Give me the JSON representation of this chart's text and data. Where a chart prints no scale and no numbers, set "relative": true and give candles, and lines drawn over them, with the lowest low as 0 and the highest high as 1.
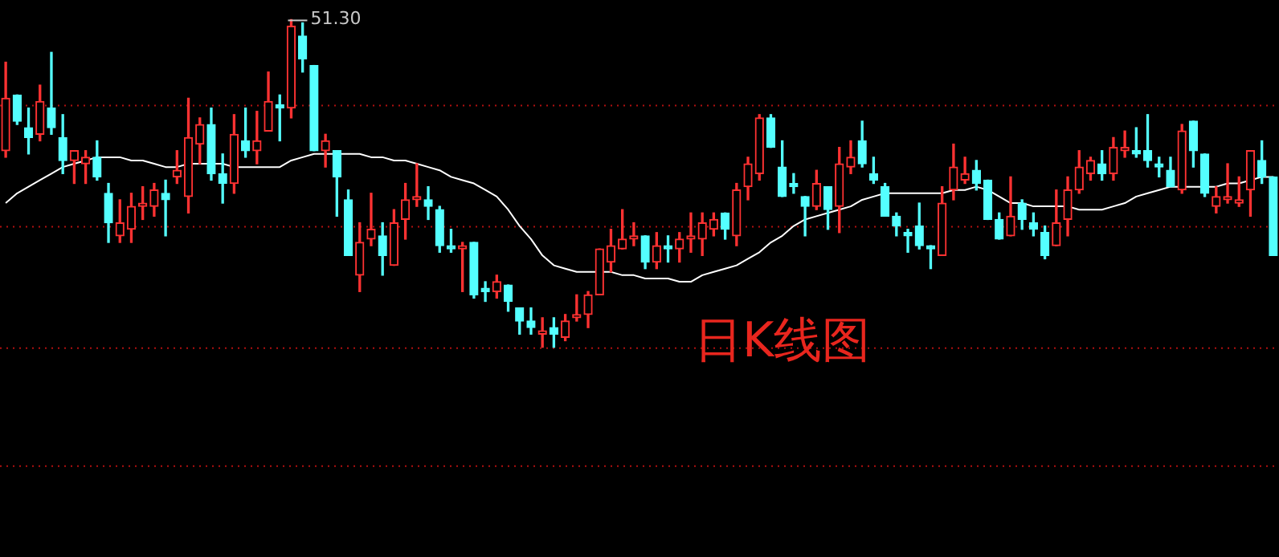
{
  "chart_data": {
    "type": "candlestick",
    "title": "日K线图",
    "relative": true,
    "categories": [
      null,
      null,
      null,
      null,
      null,
      null,
      null,
      null,
      null,
      null,
      null,
      null,
      null,
      null,
      null,
      null,
      null,
      null,
      null,
      null,
      null,
      null,
      null,
      null,
      null,
      null,
      null,
      null,
      null,
      null,
      null,
      null,
      null,
      null,
      null,
      null,
      null,
      null,
      null,
      null,
      null,
      null,
      null,
      null,
      null,
      null,
      null,
      null,
      null,
      null,
      null,
      null,
      null,
      null,
      null,
      null,
      null,
      null,
      null,
      null,
      null,
      null,
      null,
      null,
      null,
      null,
      null,
      null,
      null,
      null,
      null,
      null,
      null,
      null,
      null,
      null,
      null,
      null,
      null,
      null,
      null,
      null,
      null,
      null,
      null,
      null,
      null,
      null,
      null,
      null,
      null,
      null,
      null,
      null,
      null,
      null,
      null,
      null,
      null,
      null,
      null,
      null,
      null,
      null,
      null,
      null,
      null,
      null,
      null,
      null,
      null,
      null
    ],
    "ohlc": [
      [
        0.6,
        0.87,
        0.58,
        0.76
      ],
      [
        0.77,
        0.77,
        0.68,
        0.69
      ],
      [
        0.67,
        0.73,
        0.59,
        0.64
      ],
      [
        0.65,
        0.8,
        0.63,
        0.75
      ],
      [
        0.73,
        0.9,
        0.65,
        0.67
      ],
      [
        0.64,
        0.71,
        0.53,
        0.57
      ],
      [
        0.57,
        0.6,
        0.5,
        0.6
      ],
      [
        0.56,
        0.6,
        0.5,
        0.58
      ],
      [
        0.58,
        0.63,
        0.51,
        0.52
      ],
      [
        0.47,
        0.5,
        0.32,
        0.38
      ],
      [
        0.34,
        0.45,
        0.32,
        0.38
      ],
      [
        0.36,
        0.47,
        0.32,
        0.43
      ],
      [
        0.43,
        0.49,
        0.39,
        0.44
      ],
      [
        0.43,
        0.5,
        0.4,
        0.48
      ],
      [
        0.47,
        0.51,
        0.34,
        0.45
      ],
      [
        0.52,
        0.6,
        0.5,
        0.54
      ],
      [
        0.46,
        0.76,
        0.41,
        0.64
      ],
      [
        0.62,
        0.7,
        0.56,
        0.68
      ],
      [
        0.68,
        0.73,
        0.51,
        0.53
      ],
      [
        0.53,
        0.59,
        0.44,
        0.5
      ],
      [
        0.5,
        0.71,
        0.47,
        0.65
      ],
      [
        0.63,
        0.73,
        0.58,
        0.6
      ],
      [
        0.6,
        0.72,
        0.56,
        0.63
      ],
      [
        0.66,
        0.84,
        0.66,
        0.75
      ],
      [
        0.74,
        0.77,
        0.63,
        0.73
      ],
      [
        0.73,
        1.0,
        0.7,
        0.98
      ],
      [
        0.95,
        0.99,
        0.84,
        0.88
      ],
      [
        0.86,
        0.86,
        0.6,
        0.6
      ],
      [
        0.6,
        0.65,
        0.55,
        0.63
      ],
      [
        0.6,
        0.6,
        0.4,
        0.52
      ],
      [
        0.45,
        0.48,
        0.28,
        0.28
      ],
      [
        0.22,
        0.38,
        0.17,
        0.32
      ],
      [
        0.33,
        0.47,
        0.31,
        0.36
      ],
      [
        0.34,
        0.38,
        0.22,
        0.28
      ],
      [
        0.25,
        0.42,
        0.25,
        0.38
      ],
      [
        0.39,
        0.5,
        0.33,
        0.45
      ],
      [
        0.45,
        0.56,
        0.43,
        0.46
      ],
      [
        0.45,
        0.49,
        0.39,
        0.43
      ],
      [
        0.42,
        0.43,
        0.29,
        0.31
      ],
      [
        0.31,
        0.36,
        0.29,
        0.3
      ],
      [
        0.3,
        0.32,
        0.17,
        0.31
      ],
      [
        0.32,
        0.32,
        0.15,
        0.16
      ],
      [
        0.18,
        0.2,
        0.14,
        0.17
      ],
      [
        0.17,
        0.22,
        0.15,
        0.2
      ],
      [
        0.19,
        0.19,
        0.11,
        0.14
      ],
      [
        0.12,
        0.12,
        0.04,
        0.08
      ],
      [
        0.08,
        0.12,
        0.04,
        0.06
      ],
      [
        0.04,
        0.09,
        0,
        0.05
      ],
      [
        0.06,
        0.09,
        0,
        0.04
      ],
      [
        0.03,
        0.1,
        0.02,
        0.08
      ],
      [
        0.09,
        0.16,
        0.08,
        0.1
      ],
      [
        0.1,
        0.17,
        0.06,
        0.16
      ],
      [
        0.16,
        0.3,
        0.16,
        0.3
      ],
      [
        0.26,
        0.36,
        0.23,
        0.31
      ],
      [
        0.3,
        0.42,
        0.3,
        0.33
      ],
      [
        0.33,
        0.38,
        0.31,
        0.34
      ],
      [
        0.34,
        0.34,
        0.24,
        0.26
      ],
      [
        0.26,
        0.35,
        0.24,
        0.31
      ],
      [
        0.31,
        0.34,
        0.26,
        0.3
      ],
      [
        0.3,
        0.35,
        0.26,
        0.33
      ],
      [
        0.33,
        0.41,
        0.29,
        0.34
      ],
      [
        0.33,
        0.41,
        0.28,
        0.38
      ],
      [
        0.36,
        0.41,
        0.34,
        0.39
      ],
      [
        0.41,
        0.41,
        0.33,
        0.36
      ],
      [
        0.34,
        0.5,
        0.31,
        0.48
      ],
      [
        0.49,
        0.58,
        0.45,
        0.56
      ],
      [
        0.53,
        0.71,
        0.51,
        0.7
      ],
      [
        0.7,
        0.71,
        0.61,
        0.61
      ],
      [
        0.55,
        0.63,
        0.46,
        0.46
      ],
      [
        0.5,
        0.53,
        0.47,
        0.49
      ],
      [
        0.46,
        0.46,
        0.34,
        0.43
      ],
      [
        0.43,
        0.54,
        0.42,
        0.5
      ],
      [
        0.49,
        0.49,
        0.36,
        0.42
      ],
      [
        0.43,
        0.61,
        0.35,
        0.56
      ],
      [
        0.55,
        0.63,
        0.53,
        0.58
      ],
      [
        0.63,
        0.69,
        0.55,
        0.56
      ],
      [
        0.53,
        0.58,
        0.5,
        0.51
      ],
      [
        0.49,
        0.5,
        0.4,
        0.4
      ],
      [
        0.4,
        0.41,
        0.34,
        0.37
      ],
      [
        0.35,
        0.36,
        0.29,
        0.34
      ],
      [
        0.37,
        0.44,
        0.3,
        0.31
      ],
      [
        0.31,
        0.31,
        0.24,
        0.3
      ],
      [
        0.28,
        0.49,
        0.28,
        0.44
      ],
      [
        0.48,
        0.62,
        0.45,
        0.55
      ],
      [
        0.51,
        0.58,
        0.5,
        0.53
      ],
      [
        0.54,
        0.57,
        0.48,
        0.5
      ],
      [
        0.51,
        0.51,
        0.39,
        0.39
      ],
      [
        0.39,
        0.41,
        0.33,
        0.33
      ],
      [
        0.34,
        0.52,
        0.34,
        0.4
      ],
      [
        0.44,
        0.45,
        0.36,
        0.39
      ],
      [
        0.38,
        0.41,
        0.34,
        0.36
      ],
      [
        0.35,
        0.37,
        0.27,
        0.28
      ],
      [
        0.31,
        0.48,
        0.31,
        0.38
      ],
      [
        0.39,
        0.52,
        0.34,
        0.48
      ],
      [
        0.48,
        0.6,
        0.47,
        0.55
      ],
      [
        0.53,
        0.58,
        0.51,
        0.57
      ],
      [
        0.56,
        0.6,
        0.51,
        0.53
      ],
      [
        0.53,
        0.64,
        0.51,
        0.61
      ],
      [
        0.6,
        0.66,
        0.58,
        0.61
      ],
      [
        0.6,
        0.67,
        0.58,
        0.59
      ],
      [
        0.6,
        0.71,
        0.55,
        0.57
      ],
      [
        0.56,
        0.58,
        0.52,
        0.55
      ],
      [
        0.54,
        0.58,
        0.49,
        0.49
      ],
      [
        0.48,
        0.68,
        0.47,
        0.66
      ],
      [
        0.69,
        0.69,
        0.55,
        0.6
      ],
      [
        0.59,
        0.59,
        0.46,
        0.47
      ],
      [
        0.43,
        0.49,
        0.41,
        0.46
      ],
      [
        0.45,
        0.56,
        0.44,
        0.46
      ],
      [
        0.44,
        0.52,
        0.43,
        0.45
      ],
      [
        0.48,
        0.6,
        0.4,
        0.6
      ],
      [
        0.57,
        0.63,
        0.5,
        0.52
      ],
      [
        0.52,
        0.52,
        0.28,
        0.28
      ]
    ],
    "colors": [
      "#ff3232",
      "#54ffff",
      "#54ffff",
      "#ff3232",
      "#54ffff",
      "#54ffff",
      "#ff3232",
      "#ff3232",
      "#54ffff",
      "#54ffff",
      "#ff3232",
      "#ff3232",
      "#ff3232",
      "#ff3232",
      "#54ffff",
      "#ff3232",
      "#ff3232",
      "#ff3232",
      "#54ffff",
      "#54ffff",
      "#ff3232",
      "#54ffff",
      "#ff3232",
      "#ff3232",
      "#54ffff",
      "#ff3232",
      "#54ffff",
      "#54ffff",
      "#ff3232",
      "#54ffff",
      "#54ffff",
      "#ff3232",
      "#ff3232",
      "#54ffff",
      "#ff3232",
      "#ff3232",
      "#ff3232",
      "#54ffff",
      "#54ffff",
      "#54ffff",
      "#ff3232",
      "#54ffff",
      "#54ffff",
      "#ff3232",
      "#54ffff",
      "#54ffff",
      "#54ffff",
      "#ff3232",
      "#54ffff",
      "#ff3232",
      "#ff3232",
      "#ff3232",
      "#ff3232",
      "#ff3232",
      "#ff3232",
      "#ff3232",
      "#54ffff",
      "#ff3232",
      "#54ffff",
      "#ff3232",
      "#ff3232",
      "#ff3232",
      "#ff3232",
      "#54ffff",
      "#ff3232",
      "#ff3232",
      "#ff3232",
      "#54ffff",
      "#54ffff",
      "#54ffff",
      "#54ffff",
      "#ff3232",
      "#54ffff",
      "#ff3232",
      "#ff3232",
      "#54ffff",
      "#54ffff",
      "#54ffff",
      "#54ffff",
      "#54ffff",
      "#54ffff",
      "#54ffff",
      "#ff3232",
      "#ff3232",
      "#ff3232",
      "#54ffff",
      "#54ffff",
      "#54ffff",
      "#ff3232",
      "#54ffff",
      "#54ffff",
      "#54ffff",
      "#ff3232",
      "#ff3232",
      "#ff3232",
      "#ff3232",
      "#54ffff",
      "#ff3232",
      "#ff3232",
      "#54ffff",
      "#54ffff",
      "#54ffff",
      "#54ffff",
      "#ff3232",
      "#54ffff",
      "#54ffff",
      "#ff3232",
      "#ff3232",
      "#ff3232",
      "#ff3232",
      "#54ffff",
      "#54ffff"
    ],
    "series": [
      {
        "type": "line",
        "color": "#ffffff",
        "values": [
          0.44,
          0.47,
          0.49,
          0.51,
          0.53,
          0.55,
          0.56,
          0.57,
          0.58,
          0.58,
          0.58,
          0.57,
          0.57,
          0.56,
          0.55,
          0.55,
          0.56,
          0.56,
          0.56,
          0.56,
          0.55,
          0.55,
          0.55,
          0.55,
          0.55,
          0.57,
          0.58,
          0.59,
          0.59,
          0.59,
          0.59,
          0.59,
          0.58,
          0.58,
          0.57,
          0.57,
          0.56,
          0.55,
          0.54,
          0.52,
          0.51,
          0.5,
          0.48,
          0.46,
          0.42,
          0.37,
          0.33,
          0.28,
          0.25,
          0.24,
          0.23,
          0.23,
          0.23,
          0.23,
          0.22,
          0.22,
          0.21,
          0.21,
          0.21,
          0.2,
          0.2,
          0.22,
          0.23,
          0.24,
          0.25,
          0.27,
          0.29,
          0.32,
          0.34,
          0.37,
          0.39,
          0.4,
          0.41,
          0.42,
          0.43,
          0.45,
          0.46,
          0.47,
          0.47,
          0.47,
          0.47,
          0.47,
          0.47,
          0.48,
          0.48,
          0.49,
          0.48,
          0.46,
          0.44,
          0.44,
          0.43,
          0.43,
          0.43,
          0.43,
          0.42,
          0.42,
          0.42,
          0.43,
          0.44,
          0.46,
          0.47,
          0.48,
          0.49,
          0.49,
          0.49,
          0.49,
          0.49,
          0.5,
          0.5,
          0.51,
          0.52,
          0.52
        ]
      }
    ],
    "ref_lines": [
      {
        "axis": "y",
        "value": 0.74,
        "color": "#b01010",
        "line_style": "dotted"
      },
      {
        "axis": "y",
        "value": 0.37,
        "color": "#b01010",
        "line_style": "dotted"
      },
      {
        "axis": "y",
        "value": 0,
        "color": "#b01010",
        "line_style": "dotted"
      },
      {
        "axis": "y",
        "value": -0.36,
        "color": "#b01010",
        "line_style": "dotted"
      }
    ],
    "annotations": [
      "51.30"
    ]
  }
}
